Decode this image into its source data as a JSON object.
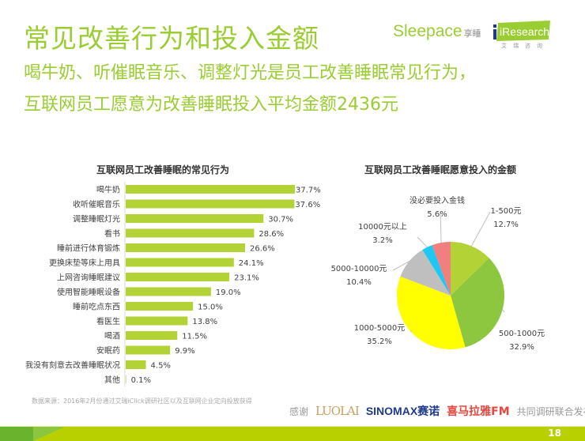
{
  "header": {
    "title": "常见改善行为和投入金额",
    "subtitle_line1": "喝牛奶、听催眠音乐、调整灯光是员工改善睡眠常见行为，",
    "subtitle_line2": "互联网员工愿意为改善睡眠投入平均金额2436元",
    "logo_sleepace": "Sleepace",
    "logo_sleepace_cn": "享睡",
    "logo_iresearch": "iResearch",
    "logo_iresearch_cn": "艾瑞咨询"
  },
  "colors": {
    "accent": "#9acd32",
    "bar": "#b3d235",
    "footer": "#b8cf00"
  },
  "chart_data": [
    {
      "type": "bar",
      "orientation": "horizontal",
      "title": "互联网员工改善睡眠的常见行为",
      "categories": [
        "喝牛奶",
        "收听催眠音乐",
        "调整睡眠灯光",
        "看书",
        "睡前进行体育锻炼",
        "更换床垫等床上用具",
        "上网咨询睡眠建议",
        "使用智能睡眠设备",
        "睡前吃点东西",
        "看医生",
        "喝酒",
        "安眠药",
        "我没有刻意去改善睡眠状况",
        "其他"
      ],
      "values": [
        37.7,
        37.6,
        30.7,
        28.6,
        26.6,
        24.1,
        23.1,
        19.0,
        15.0,
        13.8,
        11.5,
        9.9,
        4.5,
        0.1
      ],
      "labels": [
        "37.7%",
        "37.6%",
        "30.7%",
        "28.6%",
        "26.6%",
        "24.1%",
        "23.1%",
        "19.0%",
        "15.0%",
        "13.8%",
        "11.5%",
        "9.9%",
        "4.5%",
        "0.1%"
      ],
      "xlim": [
        0,
        37.7
      ],
      "unit": "%"
    },
    {
      "type": "pie",
      "title": "互联网员工改善睡眠愿意投入的金额",
      "slices": [
        {
          "name": "1-500元",
          "value": 12.7,
          "label": "12.7%",
          "color": "#b3d235"
        },
        {
          "name": "500-1000元",
          "value": 32.9,
          "label": "32.9%",
          "color": "#8dc63f"
        },
        {
          "name": "1000-5000元",
          "value": 35.2,
          "label": "35.2%",
          "color": "#ffff00"
        },
        {
          "name": "5000-10000元",
          "value": 10.4,
          "label": "10.4%",
          "color": "#bfbfbf"
        },
        {
          "name": "10000元以上",
          "value": 3.2,
          "label": "3.2%",
          "color": "#1ec8f0"
        },
        {
          "name": "没必要投入金钱",
          "value": 5.6,
          "label": "5.6%",
          "color": "#f08080"
        }
      ],
      "start_angle": "12 o'clock",
      "direction": "clockwise"
    }
  ],
  "footer": {
    "source": "数据来源：2016年2月份通过艾瑞iClick调研社区以及互联网企业定向投放获得",
    "thanks": "感谢",
    "luolai": "LUOLAI",
    "sinomax": "SINOMAX赛诺",
    "ximalaya": "喜马拉雅FM",
    "joint": "共同调研联合发布",
    "page_number": "18"
  }
}
